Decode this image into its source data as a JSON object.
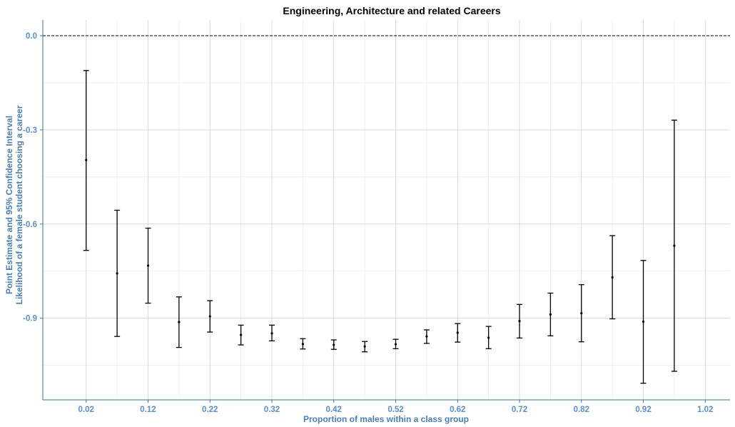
{
  "chart_data": {
    "type": "errorbar",
    "title": "Engineering, Architecture and related Careers",
    "xlabel": "Proportion of males within a class group",
    "ylabel_lines": [
      "Point Estimate and 95% Confidence Interval",
      "Likelihood of a female student choosing a career"
    ],
    "xlim": [
      -0.05,
      1.06
    ],
    "ylim": [
      -1.16,
      0.05
    ],
    "x_ticks": [
      0.02,
      0.12,
      0.22,
      0.32,
      0.42,
      0.52,
      0.62,
      0.72,
      0.82,
      0.92,
      1.02
    ],
    "x_tick_labels": [
      "0.02",
      "0.12",
      "0.22",
      "0.32",
      "0.42",
      "0.52",
      "0.62",
      "0.72",
      "0.82",
      "0.92",
      "1.02"
    ],
    "y_ticks": [
      0.0,
      -0.3,
      -0.6,
      -0.9
    ],
    "y_tick_labels": [
      "0.0",
      "-0.3",
      "-0.6",
      "-0.9"
    ],
    "reference_line": {
      "y": 0.0,
      "style": "dashed"
    },
    "grid": true,
    "points": [
      {
        "x": 0.02,
        "estimate": -0.396,
        "lower": -0.684,
        "upper": -0.111
      },
      {
        "x": 0.07,
        "estimate": -0.757,
        "lower": -0.958,
        "upper": -0.556
      },
      {
        "x": 0.12,
        "estimate": -0.732,
        "lower": -0.852,
        "upper": -0.613
      },
      {
        "x": 0.17,
        "estimate": -0.912,
        "lower": -0.993,
        "upper": -0.832
      },
      {
        "x": 0.22,
        "estimate": -0.894,
        "lower": -0.944,
        "upper": -0.844
      },
      {
        "x": 0.27,
        "estimate": -0.953,
        "lower": -0.985,
        "upper": -0.922
      },
      {
        "x": 0.32,
        "estimate": -0.948,
        "lower": -0.972,
        "upper": -0.922
      },
      {
        "x": 0.37,
        "estimate": -0.982,
        "lower": -0.998,
        "upper": -0.965
      },
      {
        "x": 0.42,
        "estimate": -0.985,
        "lower": -0.999,
        "upper": -0.969
      },
      {
        "x": 0.47,
        "estimate": -0.99,
        "lower": -1.007,
        "upper": -0.974
      },
      {
        "x": 0.52,
        "estimate": -0.983,
        "lower": -0.997,
        "upper": -0.967
      },
      {
        "x": 0.57,
        "estimate": -0.958,
        "lower": -0.98,
        "upper": -0.937
      },
      {
        "x": 0.62,
        "estimate": -0.946,
        "lower": -0.976,
        "upper": -0.917
      },
      {
        "x": 0.67,
        "estimate": -0.962,
        "lower": -0.997,
        "upper": -0.926
      },
      {
        "x": 0.72,
        "estimate": -0.909,
        "lower": -0.963,
        "upper": -0.856
      },
      {
        "x": 0.77,
        "estimate": -0.888,
        "lower": -0.956,
        "upper": -0.82
      },
      {
        "x": 0.82,
        "estimate": -0.884,
        "lower": -0.975,
        "upper": -0.793
      },
      {
        "x": 0.87,
        "estimate": -0.77,
        "lower": -0.902,
        "upper": -0.637
      },
      {
        "x": 0.92,
        "estimate": -0.911,
        "lower": -1.107,
        "upper": -0.716
      },
      {
        "x": 0.97,
        "estimate": -0.669,
        "lower": -1.069,
        "upper": -0.269
      }
    ]
  }
}
